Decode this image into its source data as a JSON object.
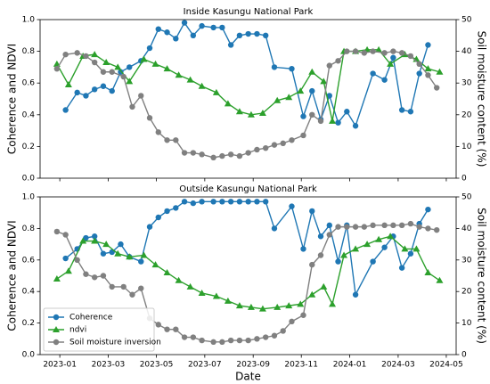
{
  "chart_data": [
    {
      "type": "line",
      "title": "Inside Kasungu National Park",
      "ylabel": "Coherence and NDVI",
      "y2label": "Soil moisture content (%)",
      "xlim": [
        2022.932,
        2024.367
      ],
      "xticks": [
        2023,
        2023.167,
        2023.333,
        2023.5,
        2023.667,
        2023.833,
        2024,
        2024.167,
        2024.333
      ],
      "ylim": [
        0,
        1
      ],
      "yticks": [
        {
          "value": 0,
          "label": "0.0"
        },
        0.2,
        0.4,
        0.6,
        0.8,
        {
          "value": 1,
          "label": "1.0"
        }
      ],
      "y2lim": [
        0,
        50
      ],
      "y2ticks": [
        0,
        10,
        20,
        30,
        40,
        50
      ],
      "series": [
        {
          "color": "#1f77b4",
          "marker": "circle",
          "x": [
            2023.02,
            2023.06,
            2023.09,
            2023.12,
            2023.15,
            2023.18,
            2023.21,
            2023.24,
            2023.28,
            2023.31,
            2023.34,
            2023.37,
            2023.4,
            2023.43,
            2023.46,
            2023.49,
            2023.53,
            2023.56,
            2023.59,
            2023.62,
            2023.65,
            2023.68,
            2023.71,
            2023.74,
            2023.8,
            2023.84,
            2023.87,
            2023.9,
            2023.93,
            2023.96,
            2023.99,
            2024.02,
            2024.08,
            2024.12,
            2024.15,
            2024.18,
            2024.21,
            2024.24,
            2024.27
          ],
          "values": [
            0.43,
            0.54,
            0.52,
            0.56,
            0.58,
            0.55,
            0.67,
            0.7,
            0.74,
            0.82,
            0.94,
            0.92,
            0.88,
            0.98,
            0.9,
            0.96,
            0.95,
            0.95,
            0.84,
            0.9,
            0.91,
            0.91,
            0.9,
            0.7,
            0.69,
            0.39,
            0.55,
            0.37,
            0.52,
            0.35,
            0.42,
            0.33,
            0.66,
            0.62,
            0.76,
            0.43,
            0.42,
            0.66,
            0.84
          ]
        },
        {
          "color": "#2ca02c",
          "marker": "triangle",
          "x": [
            2022.99,
            2023.03,
            2023.08,
            2023.12,
            2023.16,
            2023.2,
            2023.24,
            2023.29,
            2023.33,
            2023.37,
            2023.41,
            2023.45,
            2023.49,
            2023.54,
            2023.58,
            2023.62,
            2023.66,
            2023.7,
            2023.75,
            2023.79,
            2023.83,
            2023.87,
            2023.91,
            2023.94,
            2023.98,
            2024.02,
            2024.06,
            2024.1,
            2024.14,
            2024.19,
            2024.23,
            2024.27,
            2024.31
          ],
          "values": [
            0.72,
            0.59,
            0.77,
            0.78,
            0.73,
            0.7,
            0.61,
            0.75,
            0.72,
            0.69,
            0.65,
            0.62,
            0.58,
            0.54,
            0.47,
            0.42,
            0.4,
            0.41,
            0.49,
            0.51,
            0.55,
            0.67,
            0.61,
            0.36,
            0.8,
            0.8,
            0.81,
            0.81,
            0.72,
            0.78,
            0.75,
            0.69,
            0.67
          ]
        },
        {
          "color": "#808080",
          "marker": "circle",
          "axis": "y2",
          "x": [
            2022.99,
            2023.02,
            2023.06,
            2023.09,
            2023.12,
            2023.15,
            2023.18,
            2023.22,
            2023.25,
            2023.28,
            2023.31,
            2023.34,
            2023.37,
            2023.4,
            2023.43,
            2023.46,
            2023.49,
            2023.53,
            2023.56,
            2023.59,
            2023.62,
            2023.65,
            2023.68,
            2023.71,
            2023.74,
            2023.77,
            2023.8,
            2023.84,
            2023.87,
            2023.9,
            2023.93,
            2023.96,
            2023.99,
            2024.02,
            2024.05,
            2024.08,
            2024.12,
            2024.15,
            2024.18,
            2024.21,
            2024.24,
            2024.27,
            2024.3
          ],
          "values": [
            34.5,
            39,
            39.5,
            38.5,
            36.5,
            33.5,
            33.5,
            32,
            22.5,
            26,
            19,
            14.5,
            12,
            12,
            8,
            8,
            7.5,
            6.5,
            7,
            7.5,
            7,
            8,
            9,
            9.5,
            10.5,
            11,
            12,
            13.5,
            20,
            18,
            35.5,
            37,
            40,
            40,
            39.5,
            40,
            39.5,
            40,
            39.5,
            38.5,
            36,
            32.5,
            28.5
          ]
        }
      ]
    },
    {
      "type": "line",
      "title": "Outside Kasungu National Park",
      "xlabel": "Date",
      "ylabel": "Coherence and NDVI",
      "y2label": "Soil moisture content (%)",
      "xlim": [
        2022.932,
        2024.367
      ],
      "xticks": [
        {
          "value": 2023,
          "label": "2023-01"
        },
        {
          "value": 2023.167,
          "label": "2023-03"
        },
        {
          "value": 2023.333,
          "label": "2023-05"
        },
        {
          "value": 2023.5,
          "label": "2023-07"
        },
        {
          "value": 2023.667,
          "label": "2023-09"
        },
        {
          "value": 2023.833,
          "label": "2023-11"
        },
        {
          "value": 2024,
          "label": "2024-01"
        },
        {
          "value": 2024.167,
          "label": "2024-03"
        },
        {
          "value": 2024.333,
          "label": "2024-05"
        }
      ],
      "ylim": [
        0,
        1
      ],
      "yticks": [
        {
          "value": 0,
          "label": "0.0"
        },
        0.2,
        0.4,
        0.6,
        0.8,
        {
          "value": 1,
          "label": "1.0"
        }
      ],
      "y2lim": [
        0,
        50
      ],
      "y2ticks": [
        0,
        10,
        20,
        30,
        40,
        50
      ],
      "legend": "lower left",
      "series": [
        {
          "name": "Coherence",
          "color": "#1f77b4",
          "marker": "circle",
          "x": [
            2023.02,
            2023.06,
            2023.09,
            2023.12,
            2023.15,
            2023.18,
            2023.21,
            2023.24,
            2023.28,
            2023.31,
            2023.34,
            2023.37,
            2023.4,
            2023.43,
            2023.46,
            2023.49,
            2023.53,
            2023.56,
            2023.59,
            2023.62,
            2023.65,
            2023.68,
            2023.71,
            2023.74,
            2023.8,
            2023.84,
            2023.87,
            2023.9,
            2023.93,
            2023.96,
            2023.99,
            2024.02,
            2024.08,
            2024.12,
            2024.15,
            2024.18,
            2024.21,
            2024.24,
            2024.27
          ],
          "values": [
            0.61,
            0.67,
            0.74,
            0.75,
            0.64,
            0.65,
            0.7,
            0.62,
            0.59,
            0.81,
            0.87,
            0.91,
            0.93,
            0.97,
            0.96,
            0.97,
            0.97,
            0.97,
            0.97,
            0.97,
            0.97,
            0.97,
            0.97,
            0.8,
            0.94,
            0.67,
            0.91,
            0.75,
            0.82,
            0.59,
            0.82,
            0.38,
            0.59,
            0.68,
            0.75,
            0.55,
            0.64,
            0.83,
            0.92
          ]
        },
        {
          "name": "ndvi",
          "color": "#2ca02c",
          "marker": "triangle",
          "x": [
            2022.99,
            2023.03,
            2023.08,
            2023.12,
            2023.16,
            2023.2,
            2023.24,
            2023.29,
            2023.33,
            2023.37,
            2023.41,
            2023.45,
            2023.49,
            2023.54,
            2023.58,
            2023.62,
            2023.66,
            2023.7,
            2023.75,
            2023.79,
            2023.83,
            2023.87,
            2023.91,
            2023.94,
            2023.98,
            2024.02,
            2024.06,
            2024.1,
            2024.14,
            2024.19,
            2024.23,
            2024.27,
            2024.31
          ],
          "values": [
            0.48,
            0.53,
            0.72,
            0.72,
            0.7,
            0.64,
            0.62,
            0.63,
            0.57,
            0.52,
            0.47,
            0.43,
            0.39,
            0.37,
            0.34,
            0.31,
            0.3,
            0.29,
            0.3,
            0.31,
            0.32,
            0.38,
            0.43,
            0.32,
            0.63,
            0.67,
            0.7,
            0.73,
            0.75,
            0.67,
            0.67,
            0.52,
            0.47
          ]
        },
        {
          "name": "Soil moisture inversion",
          "color": "#808080",
          "marker": "circle",
          "axis": "y2",
          "x": [
            2022.99,
            2023.02,
            2023.06,
            2023.09,
            2023.12,
            2023.15,
            2023.18,
            2023.22,
            2023.25,
            2023.28,
            2023.31,
            2023.34,
            2023.37,
            2023.4,
            2023.43,
            2023.46,
            2023.49,
            2023.53,
            2023.56,
            2023.59,
            2023.62,
            2023.65,
            2023.68,
            2023.71,
            2023.74,
            2023.77,
            2023.8,
            2023.84,
            2023.87,
            2023.9,
            2023.93,
            2023.96,
            2023.99,
            2024.02,
            2024.05,
            2024.08,
            2024.12,
            2024.15,
            2024.18,
            2024.21,
            2024.24,
            2024.27,
            2024.3
          ],
          "values": [
            39,
            38,
            30,
            25.5,
            24.5,
            25,
            21.5,
            21.5,
            19,
            21,
            11.5,
            9.5,
            8,
            8,
            5.5,
            5.5,
            4.5,
            4,
            4,
            4.5,
            4.5,
            4.5,
            5,
            5.5,
            6,
            7.5,
            10.5,
            12.5,
            28.5,
            31.5,
            38,
            40.5,
            40.5,
            40.5,
            40.5,
            41,
            41,
            41,
            41,
            41.5,
            40.5,
            40,
            39.5
          ]
        }
      ]
    }
  ]
}
